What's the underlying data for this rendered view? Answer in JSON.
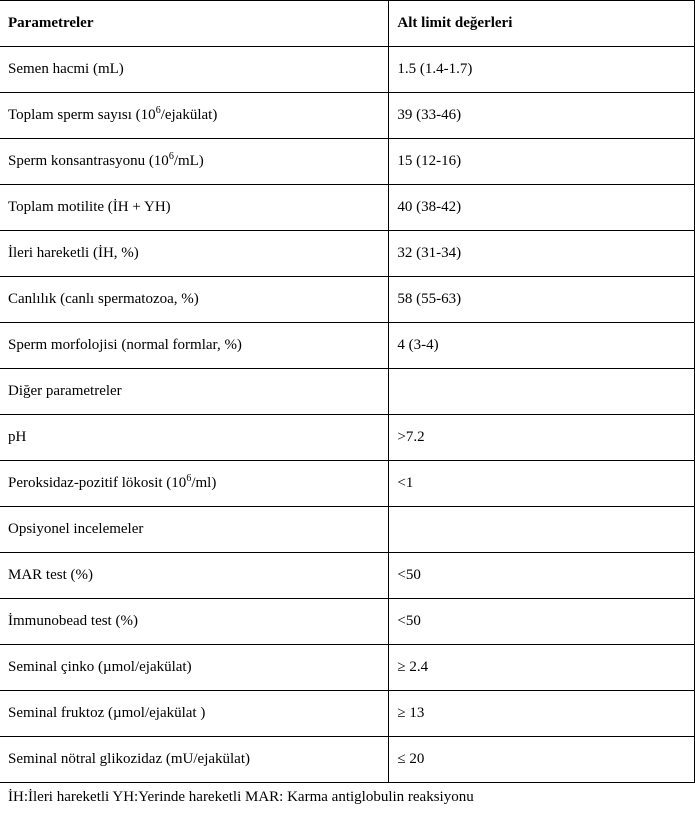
{
  "header": {
    "col1": "Parametreler",
    "col2": "Alt limit değerleri"
  },
  "rows": [
    {
      "param_pre": "Semen hacmi (mL)",
      "param_sup": "",
      "param_post": "",
      "value": "1.5 (1.4-1.7)"
    },
    {
      "param_pre": "Toplam sperm sayısı (10",
      "param_sup": "6",
      "param_post": "/ejakülat)",
      "value": "39 (33-46)"
    },
    {
      "param_pre": "Sperm konsantrasyonu (10",
      "param_sup": "6",
      "param_post": "/mL)",
      "value": "15 (12-16)"
    },
    {
      "param_pre": "Toplam motilite (İH + YH)",
      "param_sup": "",
      "param_post": "",
      "value": "40 (38-42)"
    },
    {
      "param_pre": "İleri hareketli (İH, %)",
      "param_sup": "",
      "param_post": "",
      "value": "32 (31-34)"
    },
    {
      "param_pre": "Canlılık (canlı spermatozoa, %)",
      "param_sup": "",
      "param_post": "",
      "value": "58 (55-63)"
    },
    {
      "param_pre": "Sperm morfolojisi (normal formlar, %)",
      "param_sup": "",
      "param_post": "",
      "value": "4 (3-4)"
    },
    {
      "param_pre": "Diğer parametreler",
      "param_sup": "",
      "param_post": "",
      "value": ""
    },
    {
      "param_pre": "pH",
      "param_sup": "",
      "param_post": "",
      "value": ">7.2"
    },
    {
      "param_pre": "Peroksidaz-pozitif lökosit (10",
      "param_sup": "6",
      "param_post": "/ml)",
      "value": "<1"
    },
    {
      "param_pre": "Opsiyonel incelemeler",
      "param_sup": "",
      "param_post": "",
      "value": ""
    },
    {
      "param_pre": "MAR test (%)",
      "param_sup": "",
      "param_post": "",
      "value": "<50"
    },
    {
      "param_pre": "İmmunobead test (%)",
      "param_sup": "",
      "param_post": "",
      "value": "<50"
    },
    {
      "param_pre": "Seminal çinko (µmol/ejakülat)",
      "param_sup": "",
      "param_post": "",
      "value": "≥ 2.4"
    },
    {
      "param_pre": "Seminal fruktoz (µmol/ejakülat )",
      "param_sup": "",
      "param_post": "",
      "value": "≥ 13"
    },
    {
      "param_pre": "Seminal nötral glikozidaz (mU/ejakülat)",
      "param_sup": "",
      "param_post": "",
      "value": "≤ 20"
    }
  ],
  "footnote": "İH:İleri hareketli YH:Yerinde hareketli MAR: Karma antiglobulin reaksiyonu"
}
